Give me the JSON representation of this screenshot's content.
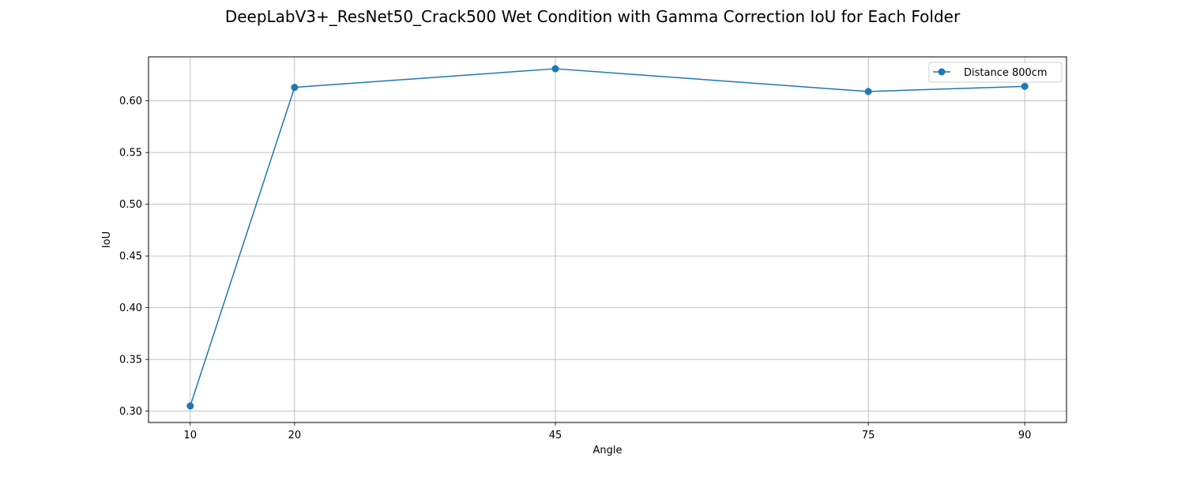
{
  "chart_data": {
    "type": "line",
    "title": "DeepLabV3+_ResNet50_Crack500 Wet Condition with Gamma Correction IoU for Each Folder",
    "xlabel": "Angle",
    "ylabel": "IoU",
    "x": [
      10,
      20,
      45,
      75,
      90
    ],
    "x_tick_labels": [
      "10",
      "20",
      "45",
      "75",
      "90"
    ],
    "xlim": [
      6,
      94
    ],
    "ylim": [
      0.289,
      0.6425
    ],
    "y_ticks": [
      0.3,
      0.35,
      0.4,
      0.45,
      0.5,
      0.55,
      0.6
    ],
    "y_tick_labels": [
      "0.30",
      "0.35",
      "0.40",
      "0.45",
      "0.50",
      "0.55",
      "0.60"
    ],
    "series": [
      {
        "name": "Distance 800cm",
        "color": "#1f77b4",
        "marker": "circle",
        "values": [
          0.305,
          0.613,
          0.631,
          0.609,
          0.614
        ]
      }
    ],
    "grid": true,
    "legend_position": "top-right"
  }
}
